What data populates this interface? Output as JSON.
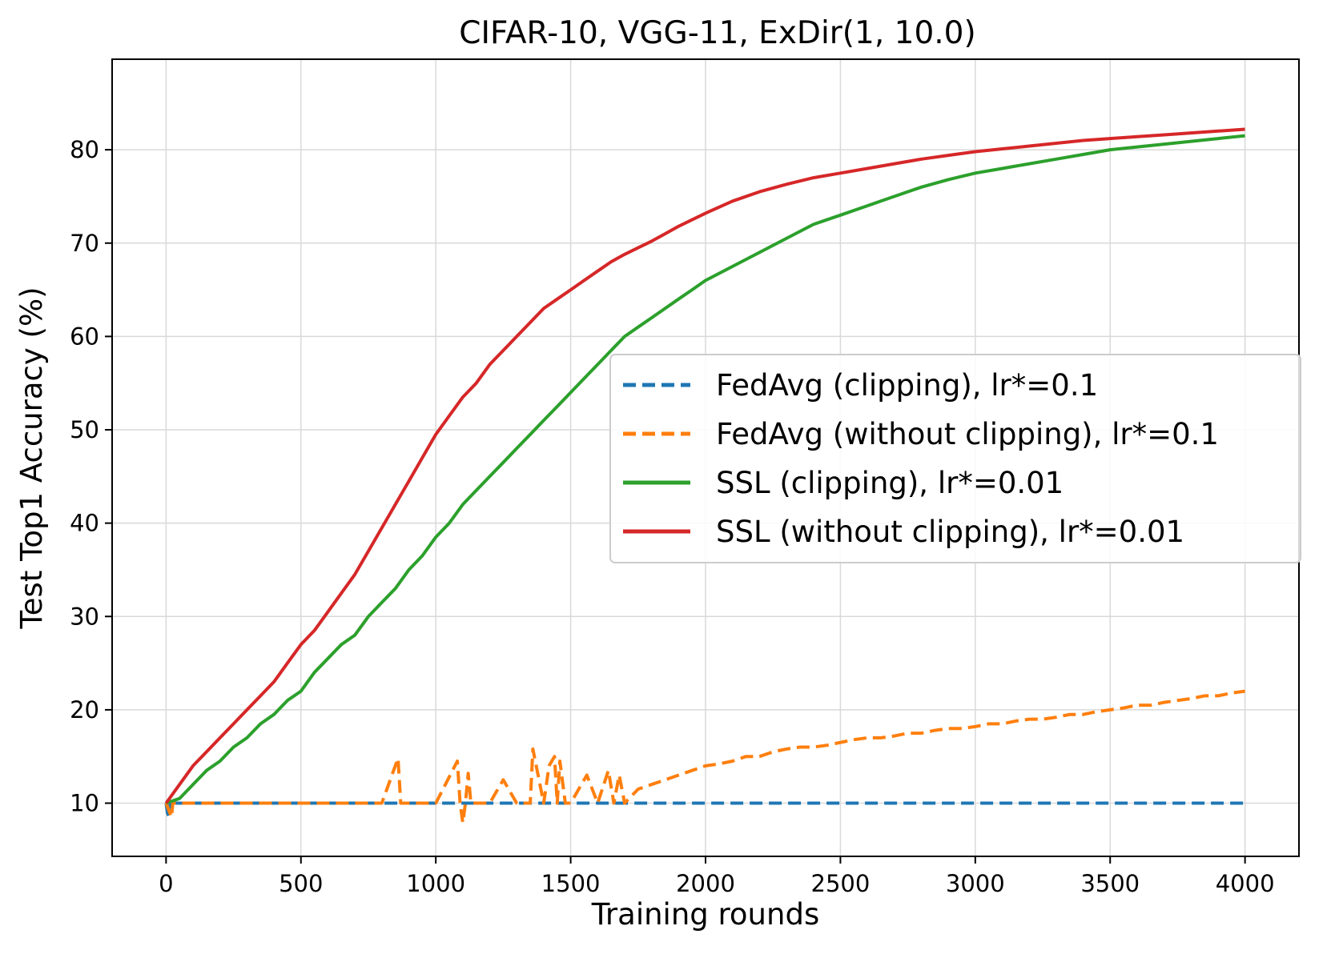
{
  "chart_data": {
    "type": "line",
    "title": "CIFAR-10, VGG-11, ExDir(1, 10.0)",
    "xlabel": "Training rounds",
    "ylabel": "Test Top1 Accuracy (%)",
    "xlim": [
      -200,
      4200
    ],
    "ylim": [
      4.3,
      89.7
    ],
    "xticks": [
      0,
      500,
      1000,
      1500,
      2000,
      2500,
      3000,
      3500,
      4000
    ],
    "yticks": [
      10,
      20,
      30,
      40,
      50,
      60,
      70,
      80
    ],
    "grid": true,
    "legend_position": "center-right",
    "series": [
      {
        "name": "FedAvg (clipping), lr*=0.1",
        "color": "#1f77b4",
        "dash": "dashed",
        "x": [
          0,
          5,
          10,
          15,
          20,
          25,
          30,
          35,
          40,
          4000
        ],
        "y": [
          10,
          9.0,
          8.6,
          10,
          9.4,
          10,
          10,
          10,
          10,
          10
        ]
      },
      {
        "name": "FedAvg (without clipping), lr*=0.1",
        "color": "#ff7f0e",
        "dash": "dashed",
        "x": [
          0,
          20,
          25,
          40,
          200,
          400,
          600,
          800,
          860,
          870,
          900,
          1000,
          1080,
          1090,
          1100,
          1110,
          1120,
          1130,
          1140,
          1200,
          1250,
          1300,
          1350,
          1360,
          1400,
          1420,
          1440,
          1450,
          1460,
          1480,
          1500,
          1560,
          1600,
          1640,
          1660,
          1680,
          1700,
          1750,
          1800,
          1850,
          1900,
          1950,
          2000,
          2050,
          2100,
          2150,
          2200,
          2250,
          2300,
          2350,
          2400,
          2450,
          2500,
          2550,
          2600,
          2650,
          2700,
          2750,
          2800,
          2850,
          2900,
          2950,
          3000,
          3050,
          3100,
          3150,
          3200,
          3250,
          3300,
          3350,
          3400,
          3450,
          3500,
          3550,
          3600,
          3650,
          3700,
          3750,
          3800,
          3850,
          3900,
          3950,
          4000
        ],
        "y": [
          10,
          8.5,
          10,
          10,
          10,
          10,
          10,
          10,
          14.8,
          10,
          10,
          10,
          14.5,
          10,
          7.9,
          10,
          13.2,
          10,
          10,
          10,
          12.5,
          10,
          10,
          15.8,
          10,
          14,
          15,
          10,
          14.5,
          10,
          10,
          13,
          10,
          13.5,
          10,
          13,
          10,
          11.5,
          12,
          12.5,
          13,
          13.5,
          14,
          14.2,
          14.5,
          15,
          15,
          15.5,
          15.8,
          16,
          16,
          16.2,
          16.5,
          16.8,
          17,
          17,
          17.2,
          17.5,
          17.5,
          17.8,
          18,
          18,
          18.2,
          18.5,
          18.5,
          18.8,
          19,
          19,
          19.2,
          19.5,
          19.5,
          19.8,
          20,
          20.2,
          20.5,
          20.5,
          20.8,
          21,
          21.2,
          21.5,
          21.5,
          21.8,
          22
        ]
      },
      {
        "name": "SSL (clipping), lr*=0.01",
        "color": "#2ca02c",
        "dash": "solid",
        "x": [
          0,
          50,
          100,
          150,
          200,
          250,
          300,
          350,
          400,
          450,
          500,
          550,
          600,
          650,
          700,
          750,
          800,
          850,
          900,
          950,
          1000,
          1050,
          1100,
          1150,
          1200,
          1250,
          1300,
          1350,
          1400,
          1450,
          1500,
          1550,
          1600,
          1650,
          1700,
          1750,
          1800,
          1850,
          1900,
          1950,
          2000,
          2100,
          2200,
          2300,
          2400,
          2500,
          2600,
          2700,
          2800,
          2900,
          3000,
          3100,
          3200,
          3300,
          3400,
          3500,
          3600,
          3700,
          3800,
          3900,
          4000
        ],
        "y": [
          10,
          10.5,
          12,
          13.5,
          14.5,
          16,
          17,
          18.5,
          19.5,
          21,
          22,
          24,
          25.5,
          27,
          28,
          30,
          31.5,
          33,
          35,
          36.5,
          38.5,
          40,
          42,
          43.5,
          45,
          46.5,
          48,
          49.5,
          51,
          52.5,
          54,
          55.5,
          57,
          58.5,
          60,
          61,
          62,
          63,
          64,
          65,
          66,
          67.5,
          69,
          70.5,
          72,
          73,
          74,
          75,
          76,
          76.8,
          77.5,
          78,
          78.5,
          79,
          79.5,
          80,
          80.3,
          80.6,
          80.9,
          81.2,
          81.5
        ]
      },
      {
        "name": "SSL (without clipping), lr*=0.01",
        "color": "#d62728",
        "dash": "solid",
        "x": [
          0,
          50,
          100,
          150,
          200,
          250,
          300,
          350,
          400,
          450,
          500,
          550,
          600,
          650,
          700,
          750,
          800,
          850,
          900,
          950,
          1000,
          1050,
          1100,
          1150,
          1200,
          1250,
          1300,
          1350,
          1400,
          1450,
          1500,
          1550,
          1600,
          1650,
          1700,
          1750,
          1800,
          1850,
          1900,
          1950,
          2000,
          2100,
          2200,
          2300,
          2400,
          2500,
          2600,
          2700,
          2800,
          2900,
          3000,
          3100,
          3200,
          3300,
          3400,
          3500,
          3600,
          3700,
          3800,
          3900,
          4000
        ],
        "y": [
          10,
          12,
          14,
          15.5,
          17,
          18.5,
          20,
          21.5,
          23,
          25,
          27,
          28.5,
          30.5,
          32.5,
          34.5,
          37,
          39.5,
          42,
          44.5,
          47,
          49.5,
          51.5,
          53.5,
          55,
          57,
          58.5,
          60,
          61.5,
          63,
          64,
          65,
          66,
          67,
          68,
          68.8,
          69.5,
          70.2,
          71,
          71.8,
          72.5,
          73.2,
          74.5,
          75.5,
          76.3,
          77,
          77.5,
          78,
          78.5,
          79,
          79.4,
          79.8,
          80.1,
          80.4,
          80.7,
          81,
          81.2,
          81.4,
          81.6,
          81.8,
          82,
          82.2
        ]
      }
    ]
  }
}
